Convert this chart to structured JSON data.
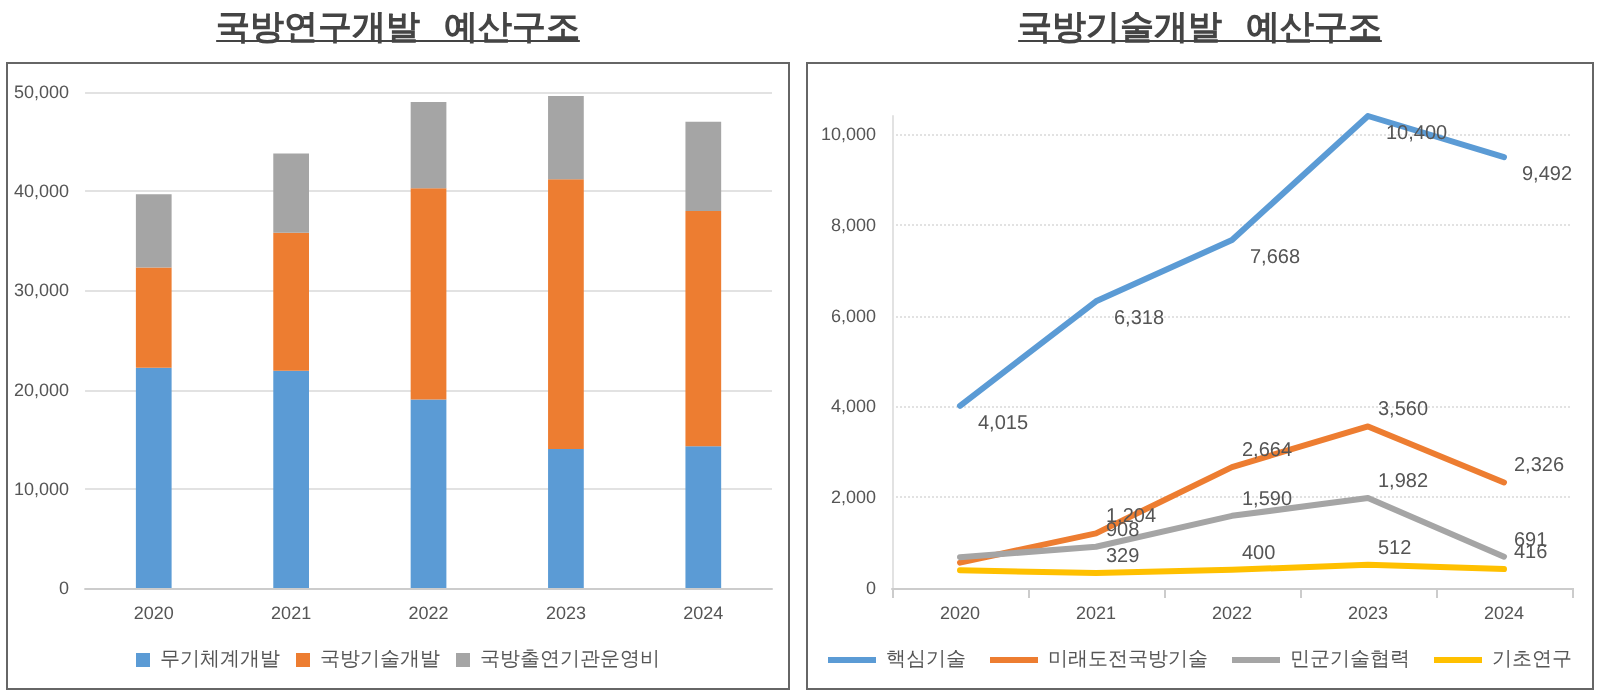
{
  "chart_data": [
    {
      "type": "bar",
      "title": "국방연구개발  예산구조",
      "stacked": true,
      "categories": [
        "2020",
        "2021",
        "2022",
        "2023",
        "2024"
      ],
      "series": [
        {
          "name": "무기체계개발",
          "color": "#5b9bd5",
          "values": [
            22200,
            21900,
            19000,
            14000,
            14300
          ]
        },
        {
          "name": "국방기술개발",
          "color": "#ed7d31",
          "values": [
            10100,
            13900,
            21300,
            27200,
            23700
          ]
        },
        {
          "name": "국방출연기관운영비",
          "color": "#a5a5a5",
          "values": [
            7400,
            8000,
            8700,
            8400,
            9000
          ]
        }
      ],
      "ylim": [
        0,
        50000
      ],
      "yticks": [
        0,
        {
          "value": 10000,
          "label": "10,000"
        },
        {
          "value": 20000,
          "label": "20,000"
        },
        {
          "value": 30000,
          "label": "30,000"
        },
        {
          "value": 40000,
          "label": "40,000"
        },
        {
          "value": 50000,
          "label": "50,000"
        }
      ],
      "grid": "y",
      "legend": "bottom"
    },
    {
      "type": "line",
      "title": "국방기술개발  예산구조",
      "categories": [
        "2020",
        "2021",
        "2022",
        "2023",
        "2024"
      ],
      "series": [
        {
          "name": "핵심기술",
          "color": "#5b9bd5",
          "values": [
            4015,
            6318,
            7668,
            10400,
            9492
          ],
          "value_labels": [
            "4,015",
            "6,318",
            "7,668",
            "10,400",
            "9,492"
          ]
        },
        {
          "name": "미래도전국방기술",
          "color": "#ed7d31",
          "values": [
            560,
            1204,
            2664,
            3560,
            2326
          ],
          "value_labels": [
            null,
            "1,204",
            "2,664",
            "3,560",
            "2,326"
          ]
        },
        {
          "name": "민군기술협력",
          "color": "#a5a5a5",
          "values": [
            680,
            908,
            1590,
            1982,
            691
          ],
          "value_labels": [
            null,
            "908",
            "1,590",
            "1,982",
            "691"
          ]
        },
        {
          "name": "기초연구",
          "color": "#ffc000",
          "values": [
            390,
            329,
            400,
            512,
            416
          ],
          "value_labels": [
            null,
            "329",
            "400",
            "512",
            "416"
          ]
        }
      ],
      "ylim": [
        0,
        10400
      ],
      "yticks": [
        0,
        {
          "value": 2000,
          "label": "2,000"
        },
        {
          "value": 4000,
          "label": "4,000"
        },
        {
          "value": 6000,
          "label": "6,000"
        },
        {
          "value": 8000,
          "label": "8,000"
        },
        {
          "value": 10000,
          "label": "10,000"
        }
      ],
      "grid": "y",
      "legend": "bottom",
      "marker": "none",
      "line_style": "solid"
    }
  ]
}
